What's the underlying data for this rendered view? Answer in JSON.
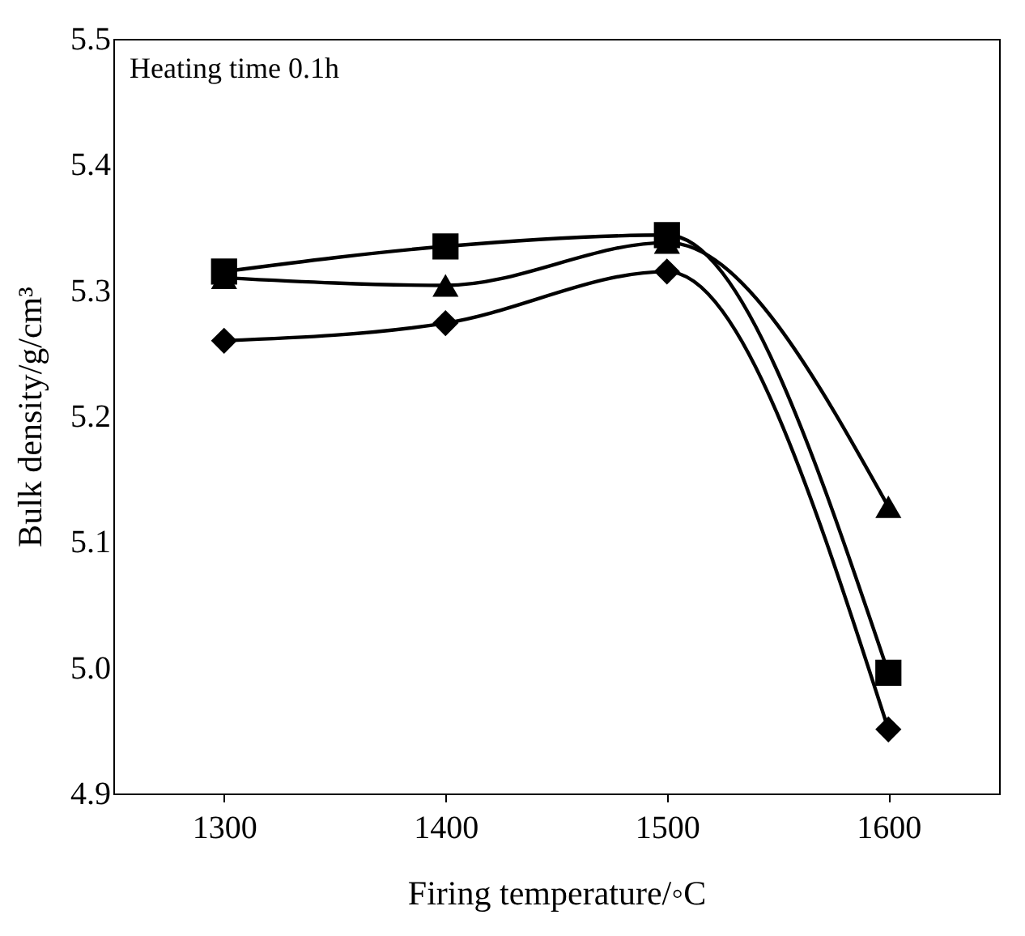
{
  "chart_data": {
    "type": "line",
    "xlabel": "Firing temperature/◦C",
    "ylabel": "Bulk density/g/cm³",
    "annotations": [
      "Heating time 0.1h"
    ],
    "x": [
      1300,
      1400,
      1500,
      1600
    ],
    "series": [
      {
        "color": "#000000",
        "marker": "square",
        "values": [
          5.315,
          5.335,
          5.344,
          4.996
        ]
      },
      {
        "color": "#000000",
        "marker": "triangle",
        "values": [
          5.31,
          5.304,
          5.338,
          5.128
        ]
      },
      {
        "color": "#000000",
        "marker": "diamond",
        "values": [
          5.26,
          5.274,
          5.315,
          4.951
        ]
      }
    ],
    "xlim": [
      1250,
      1650
    ],
    "xticks": [
      1300,
      1400,
      1500,
      1600
    ],
    "ylim": [
      4.9,
      5.5
    ],
    "yticks": [
      4.9,
      {
        "value": 5.0,
        "label": "5.0"
      },
      5.1,
      5.2,
      5.3,
      5.4,
      5.5
    ],
    "grid": false,
    "line_style": "solid"
  }
}
